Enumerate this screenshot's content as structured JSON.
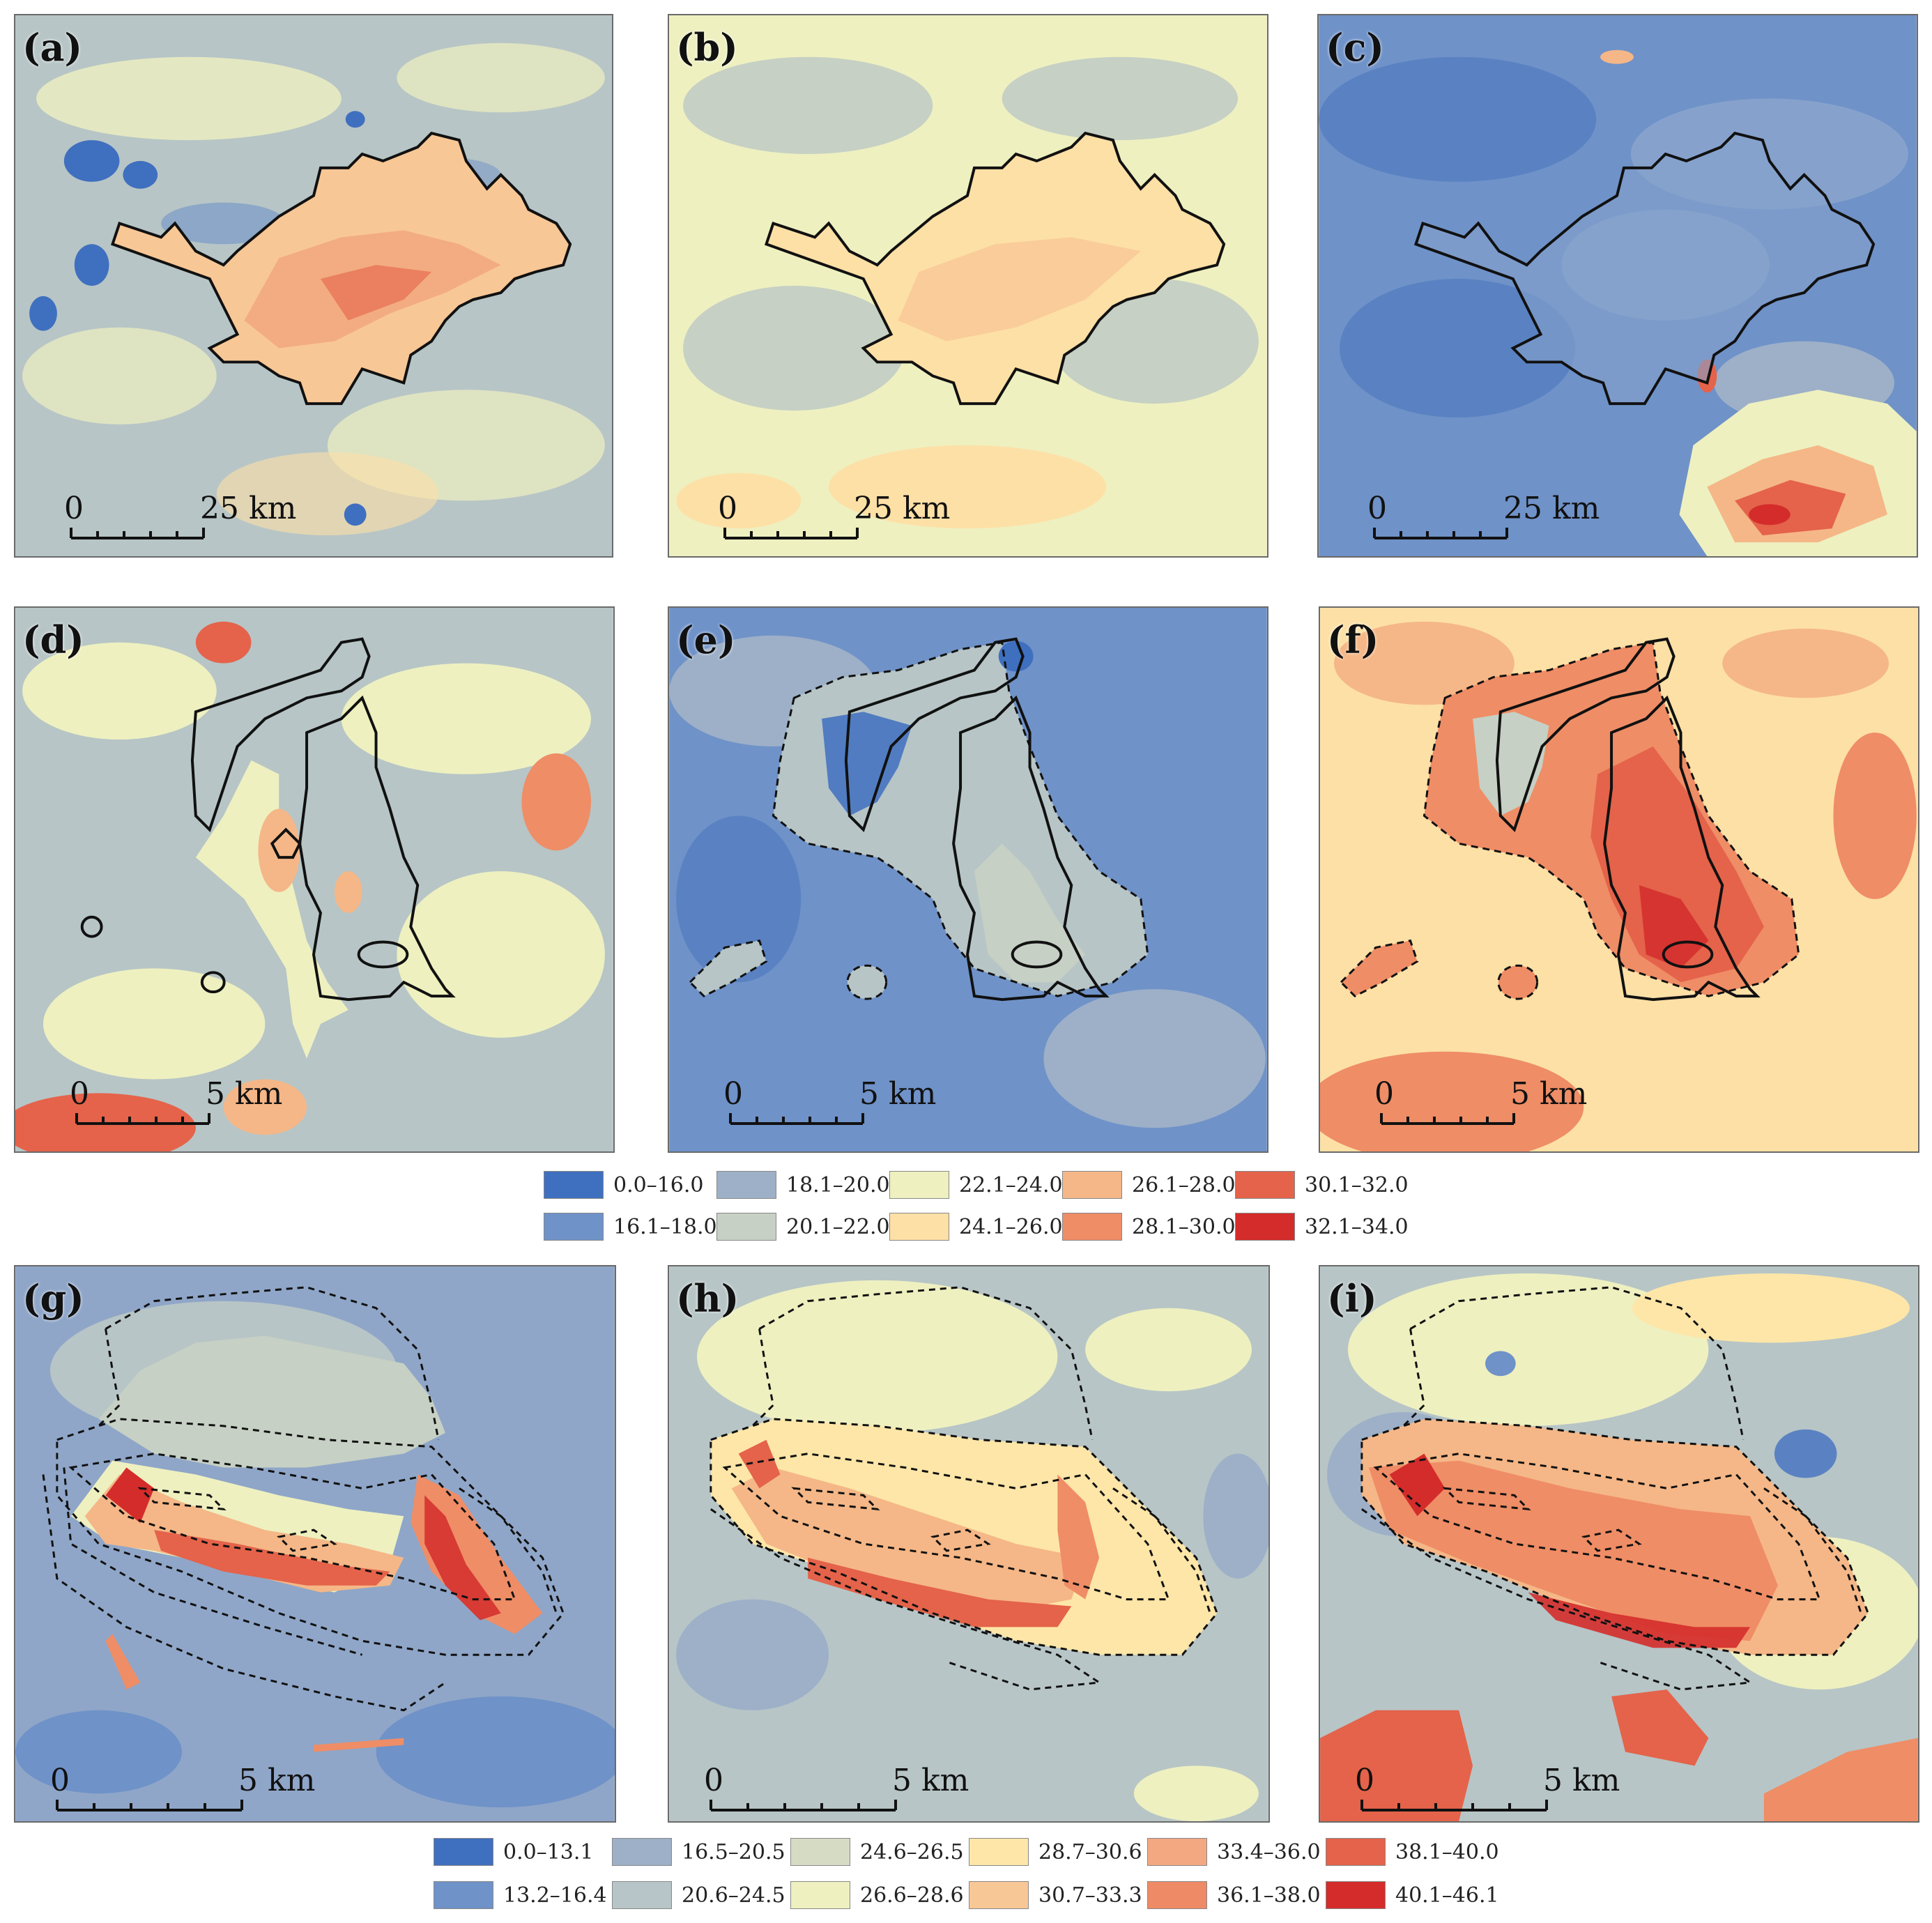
{
  "panels": [
    {
      "label": "(a)",
      "scale_zero": "0",
      "scale_km": "25 km"
    },
    {
      "label": "(b)",
      "scale_zero": "0",
      "scale_km": "25 km"
    },
    {
      "label": "(c)",
      "scale_zero": "0",
      "scale_km": "25 km"
    },
    {
      "label": "(d)",
      "scale_zero": "0",
      "scale_km": "5 km"
    },
    {
      "label": "(e)",
      "scale_zero": "0",
      "scale_km": "5 km"
    },
    {
      "label": "(f)",
      "scale_zero": "0",
      "scale_km": "5 km"
    },
    {
      "label": "(g)",
      "scale_zero": "0",
      "scale_km": "5 km"
    },
    {
      "label": "(h)",
      "scale_zero": "0",
      "scale_km": "5 km"
    },
    {
      "label": "(i)",
      "scale_zero": "0",
      "scale_km": "5 km"
    }
  ],
  "legend_top": [
    {
      "label": "0.0–16.0",
      "color": "#3f6fbf"
    },
    {
      "label": "18.1–20.0",
      "color": "#9db0c8"
    },
    {
      "label": "22.1–24.0",
      "color": "#eef0c0"
    },
    {
      "label": "26.1–28.0",
      "color": "#f5b787"
    },
    {
      "label": "30.1–32.0",
      "color": "#e4634a"
    },
    {
      "label": "16.1–18.0",
      "color": "#6f92c8"
    },
    {
      "label": "20.1–22.0",
      "color": "#c6d0c4"
    },
    {
      "label": "24.1–26.0",
      "color": "#fde0a6"
    },
    {
      "label": "28.1–30.0",
      "color": "#ef8d66"
    },
    {
      "label": "32.1–34.0",
      "color": "#d42c2b"
    }
  ],
  "legend_bottom": [
    {
      "label": "0.0–13.1",
      "color": "#3f6fbf"
    },
    {
      "label": "16.5–20.5",
      "color": "#9db0c8"
    },
    {
      "label": "24.6–26.5",
      "color": "#d6dcc4"
    },
    {
      "label": "28.7–30.6",
      "color": "#fde6a8"
    },
    {
      "label": "33.4–36.0",
      "color": "#f4a882"
    },
    {
      "label": "38.1–40.0",
      "color": "#e4634a"
    },
    {
      "label": "13.2–16.4",
      "color": "#6f92c8"
    },
    {
      "label": "20.6–24.5",
      "color": "#b7c4c8"
    },
    {
      "label": "26.6–28.6",
      "color": "#eef0c0"
    },
    {
      "label": "30.7–33.3",
      "color": "#f8c796"
    },
    {
      "label": "36.1–38.0",
      "color": "#ee8a66"
    },
    {
      "label": "40.1–46.1",
      "color": "#d42c2b"
    }
  ]
}
